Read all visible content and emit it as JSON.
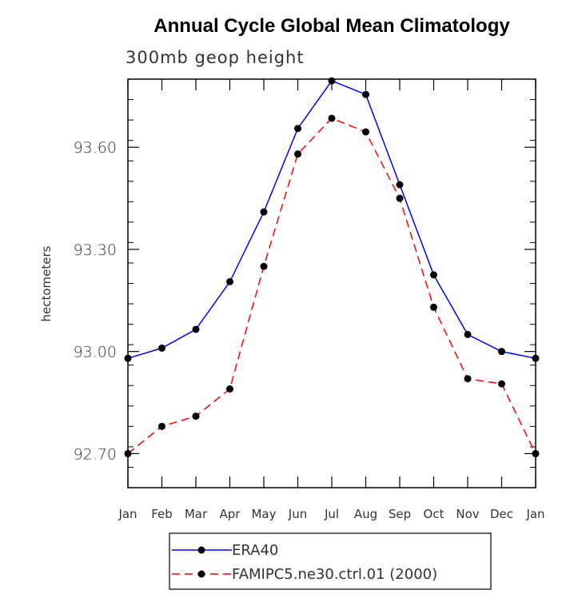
{
  "chart_data": {
    "type": "line",
    "title": "Annual Cycle Global Mean Climatology",
    "subtitle": "300mb geop height",
    "ylabel": "hectometers",
    "xlabel": "",
    "categories": [
      "Jan",
      "Feb",
      "Mar",
      "Apr",
      "May",
      "Jun",
      "Jul",
      "Aug",
      "Sep",
      "Oct",
      "Nov",
      "Dec",
      "Jan"
    ],
    "ylim": [
      92.6,
      93.8
    ],
    "yticks": [
      92.7,
      93.0,
      93.3,
      93.6
    ],
    "ytick_labels": [
      "92.70",
      "93.00",
      "93.30",
      "93.60"
    ],
    "grid": false,
    "legend_position": "bottom",
    "series": [
      {
        "name": "ERA40",
        "color": "#0000ff",
        "dash": "solid",
        "marker": "filled-circle",
        "values": [
          92.98,
          93.01,
          93.065,
          93.205,
          93.41,
          93.655,
          93.795,
          93.755,
          93.49,
          93.225,
          93.05,
          93.0,
          92.98
        ]
      },
      {
        "name": "FAMIPC5.ne30.ctrl.01 (2000)",
        "color": "#ff0000",
        "dash": "dashed",
        "marker": "filled-circle",
        "values": [
          92.7,
          92.78,
          92.81,
          92.89,
          93.25,
          93.58,
          93.685,
          93.645,
          93.45,
          93.13,
          92.92,
          92.905,
          92.7
        ]
      }
    ]
  }
}
